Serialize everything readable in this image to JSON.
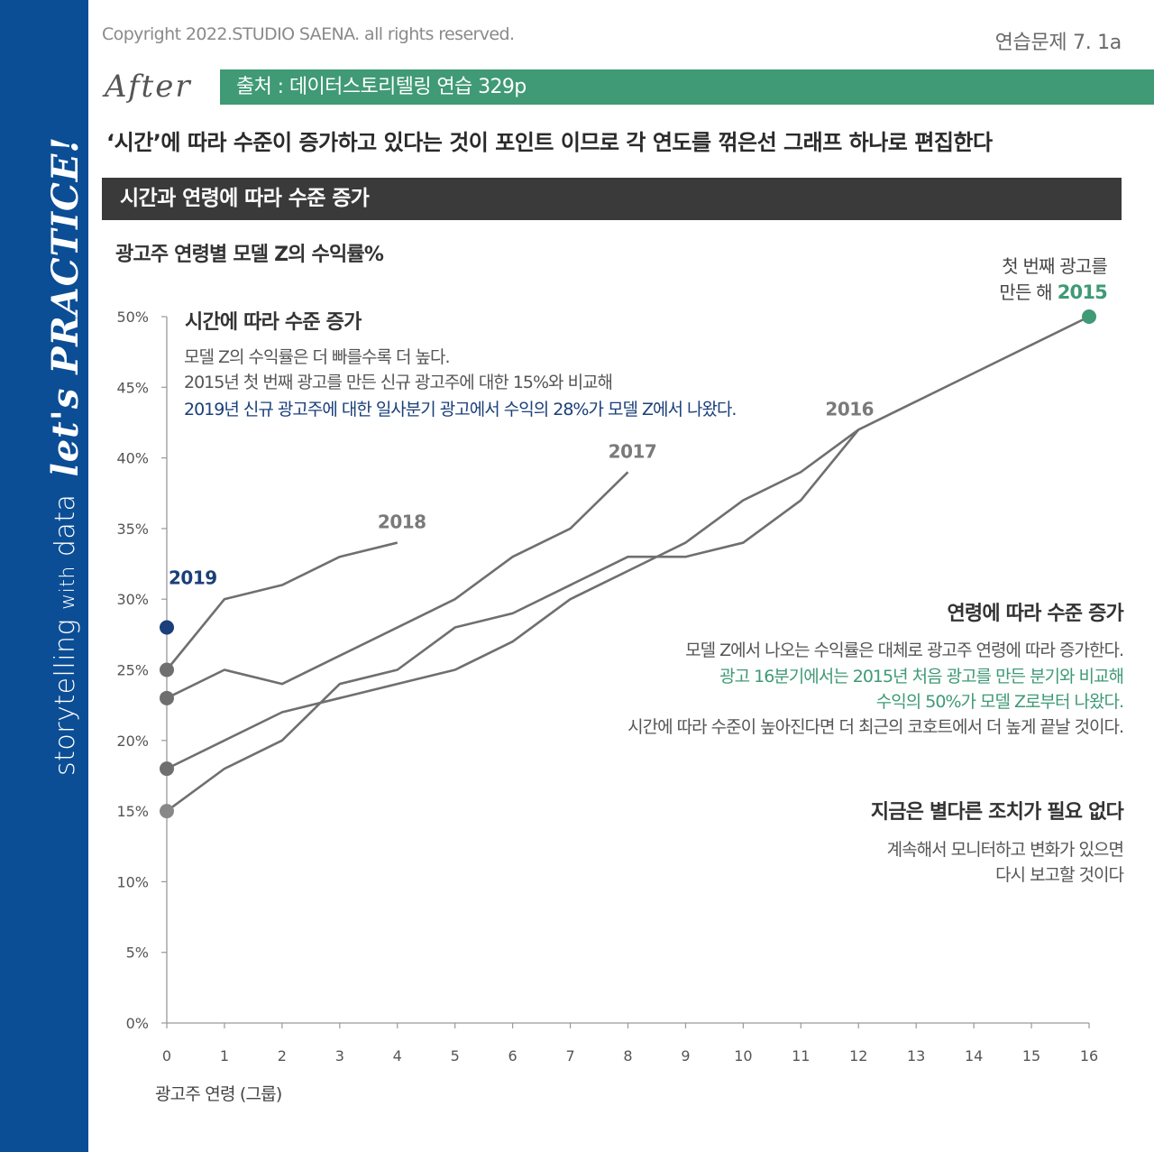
{
  "sidebar": {
    "brand_main": "storytelling",
    "brand_with": "with",
    "brand_data": "data",
    "practice": "let's PRACTICE!"
  },
  "header": {
    "copyright": "Copyright 2022.STUDIO SAENA. all rights reserved.",
    "exercise": "연습문제 7. 1a",
    "after": "After",
    "source": "출처 : 데이터스토리텔링 연습 329p",
    "intro": "‘시간’에 따라 수준이 증가하고 있다는 것이 포인트 이므로  각 연도를 꺾은선 그래프 하나로 편집한다",
    "headline": "시간과 연령에 따라 수준 증가"
  },
  "annotations": {
    "time": {
      "title": "시간에 따라 수준 증가",
      "lines": [
        "모델 Z의 수익률은 더 빠를수록 더 높다.",
        "2015년 첫 번째 광고를 만든 신규 광고주에 대한 15%와 비교해",
        "2019년 신규 광고주에 대한 일사분기 광고에서 수익의 28%가 모델 Z에서 나왔다."
      ]
    },
    "age": {
      "title": "연령에 따라 수준 증가",
      "lines": [
        "모델 Z에서 나오는 수익률은 대체로 광고주  연령에 따라 증가한다.",
        "광고 16분기에서는 2015년 처음 광고를 만든 분기와 비교해",
        "수익의 50%가 모델 Z로부터 나왔다.",
        "시간에 따라 수준이 높아진다면 더 최근의 코호트에서 더 높게 끝날 것이다."
      ]
    },
    "action": {
      "title": "지금은 별다른 조치가 필요 없다",
      "lines": [
        "계속해서 모니터하고 변화가 있으면",
        "다시 보고할 것이다"
      ]
    },
    "first_ad": {
      "line1": "첫 번째 광고를",
      "line2": "만든 해"
    }
  },
  "colors": {
    "sidebar": "#0b4e96",
    "accent_green": "#3f9a75",
    "accent_navy": "#1a3f7a",
    "line_gray": "#6f6f6f",
    "header_bar": "#3a3a3a"
  },
  "chart_data": {
    "type": "line",
    "title": "광고주 연령별 모델 Z의 수익률%",
    "xlabel": "광고주 연령 (그룹)",
    "ylabel": "",
    "x_ticks": [
      "0",
      "1",
      "2",
      "3",
      "4",
      "5",
      "6",
      "7",
      "8",
      "9",
      "10",
      "11",
      "12",
      "13",
      "14",
      "15",
      "16"
    ],
    "y_ticks": [
      "0%",
      "5%",
      "10%",
      "15%",
      "20%",
      "25%",
      "30%",
      "35%",
      "40%",
      "45%",
      "50%"
    ],
    "xlim": [
      0,
      16
    ],
    "ylim": [
      0,
      50
    ],
    "grid": false,
    "series": [
      {
        "name": "2015",
        "x": [
          0,
          1,
          2,
          3,
          4,
          5,
          6,
          7,
          8,
          9,
          10,
          11,
          12,
          13,
          14,
          15,
          16
        ],
        "values": [
          15,
          18,
          20,
          24,
          25,
          28,
          29,
          31,
          33,
          33,
          34,
          37,
          42,
          44,
          46,
          48,
          50
        ],
        "color": "#6f6f6f",
        "point_color": "#3f9a75"
      },
      {
        "name": "2016",
        "x": [
          0,
          1,
          2,
          3,
          4,
          5,
          6,
          7,
          8,
          9,
          10,
          11,
          12
        ],
        "values": [
          18,
          20,
          22,
          23,
          24,
          25,
          27,
          30,
          32,
          34,
          37,
          39,
          42
        ],
        "color": "#6f6f6f",
        "point_color": "#6f6f6f"
      },
      {
        "name": "2017",
        "x": [
          0,
          1,
          2,
          3,
          4,
          5,
          6,
          7,
          8
        ],
        "values": [
          23,
          25,
          24,
          26,
          28,
          30,
          33,
          35,
          39
        ],
        "color": "#6f6f6f",
        "point_color": "#6f6f6f"
      },
      {
        "name": "2018",
        "x": [
          0,
          1,
          2,
          3,
          4
        ],
        "values": [
          25,
          30,
          31,
          33,
          34
        ],
        "color": "#6f6f6f",
        "point_color": "#6f6f6f"
      },
      {
        "name": "2019",
        "x": [
          0
        ],
        "values": [
          28
        ],
        "color": "#1a3f7a",
        "point_color": "#1a3f7a"
      }
    ]
  }
}
